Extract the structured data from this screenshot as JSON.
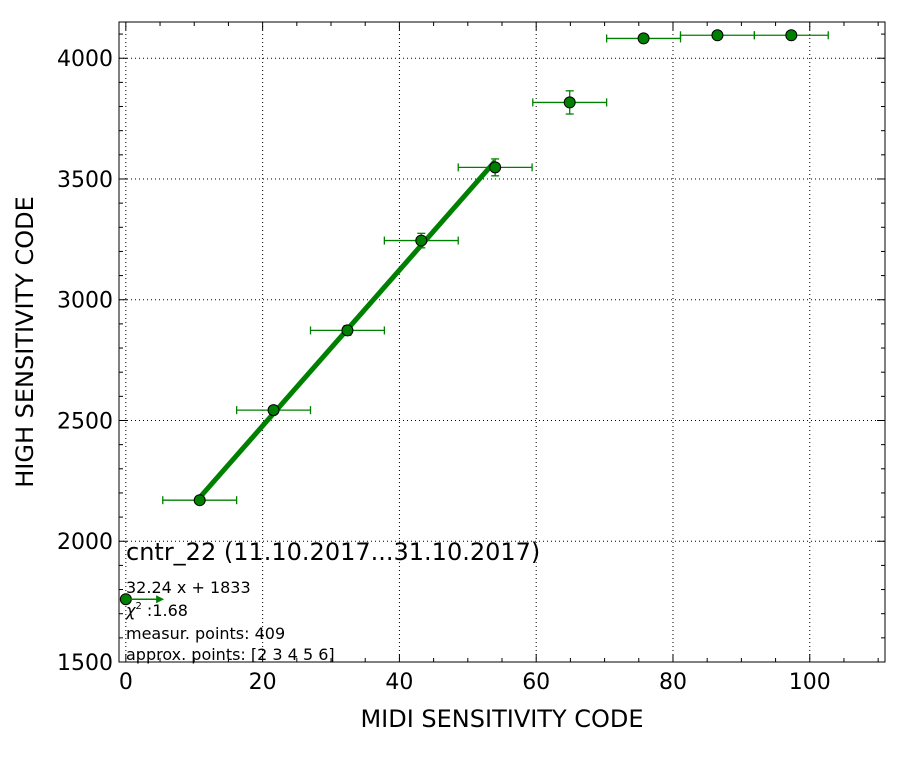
{
  "chart_data": {
    "type": "scatter",
    "title": "",
    "xlabel": "MIDI SENSITIVITY CODE",
    "ylabel": "HIGH SENSITIVITY CODE",
    "xlim": [
      -1,
      111
    ],
    "ylim": [
      1500,
      4150
    ],
    "x_ticks": [
      0,
      20,
      40,
      60,
      80,
      100
    ],
    "y_ticks": [
      1500,
      2000,
      2500,
      3000,
      3500,
      4000
    ],
    "x_tick_labels": [
      "0",
      "20",
      "40",
      "60",
      "80",
      "100"
    ],
    "y_tick_labels": [
      "1500",
      "2000",
      "2500",
      "3000",
      "3500",
      "4000"
    ],
    "grid": true,
    "colors": {
      "series": "#008000",
      "marker_edge": "#000000",
      "grid": "#000000"
    },
    "series": [
      {
        "type": "points",
        "points": [
          {
            "x": 0,
            "y": 1760,
            "xerr": 0,
            "yerr": 0
          },
          {
            "x": 10.8,
            "y": 2170,
            "xerr": 5.4,
            "yerr": 8
          },
          {
            "x": 21.6,
            "y": 2543,
            "xerr": 5.4,
            "yerr": 10
          },
          {
            "x": 32.4,
            "y": 2873,
            "xerr": 5.4,
            "yerr": 20
          },
          {
            "x": 43.2,
            "y": 3245,
            "xerr": 5.4,
            "yerr": 30
          },
          {
            "x": 54.0,
            "y": 3548,
            "xerr": 5.4,
            "yerr": 35
          },
          {
            "x": 64.9,
            "y": 3817,
            "xerr": 5.4,
            "yerr": 48
          },
          {
            "x": 75.7,
            "y": 4082,
            "xerr": 5.4,
            "yerr": 6
          },
          {
            "x": 86.5,
            "y": 4095,
            "xerr": 5.4,
            "yerr": 4
          },
          {
            "x": 97.3,
            "y": 4095,
            "xerr": 5.4,
            "yerr": 4
          }
        ]
      },
      {
        "type": "fit-line",
        "slope": 32.24,
        "intercept": 1833,
        "x_range": [
          10.8,
          54.0
        ]
      }
    ],
    "arrow": {
      "x_from": 0,
      "x_to": 5.6,
      "y": 1760
    },
    "annotations": {
      "title": "cntr_22 (11.10.2017...31.10.2017)",
      "fit": "32.24 x + 1833",
      "chi_symbol": "χ",
      "chi_exp": "2",
      "chi_value": " :1.68",
      "measur": "measur. points: 409",
      "approx": "approx. points: [2 3 4 5 6]"
    }
  }
}
